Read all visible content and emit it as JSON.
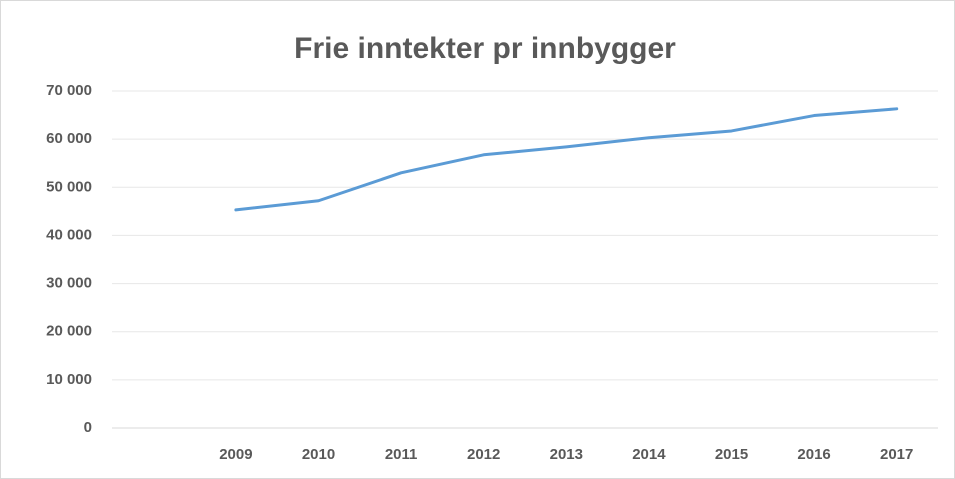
{
  "chart_data": {
    "type": "line",
    "title": "Frie inntekter pr innbygger",
    "categories": [
      null,
      "2009",
      "2010",
      "2011",
      "2012",
      "2013",
      "2014",
      "2015",
      "2016",
      "2017"
    ],
    "series": [
      {
        "color": "#5b9bd5",
        "values": [
          null,
          45300,
          47200,
          53000,
          56750,
          58400,
          60300,
          61700,
          64900,
          66300
        ]
      }
    ],
    "ylim": [
      0,
      70000
    ],
    "yticks": [
      {
        "value": 0,
        "label": "0"
      },
      {
        "value": 10000,
        "label": "10 000"
      },
      {
        "value": 20000,
        "label": "20 000"
      },
      {
        "value": 30000,
        "label": "30 000"
      },
      {
        "value": 40000,
        "label": "40 000"
      },
      {
        "value": 50000,
        "label": "50 000"
      },
      {
        "value": 60000,
        "label": "60 000"
      },
      {
        "value": 70000,
        "label": "70 000"
      }
    ],
    "grid": true
  }
}
